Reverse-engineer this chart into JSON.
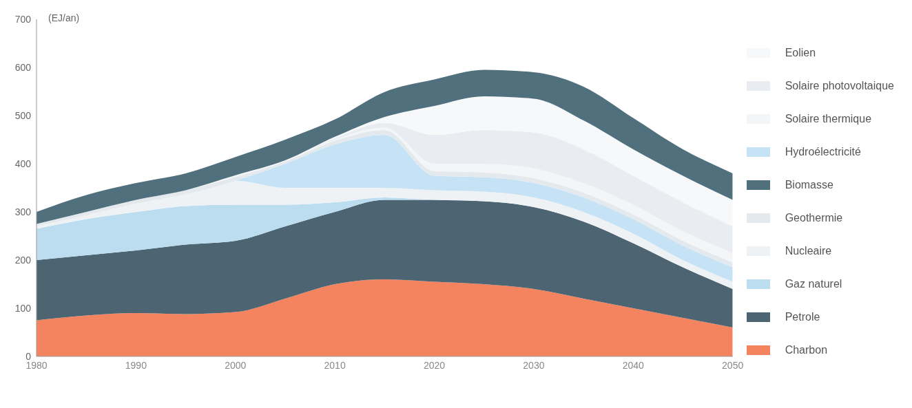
{
  "chart_data": {
    "type": "area",
    "stacked": true,
    "ylabel": "(EJ/an)",
    "x": [
      1980,
      1985,
      1990,
      1995,
      2000,
      2005,
      2010,
      2015,
      2020,
      2025,
      2030,
      2035,
      2040,
      2045,
      2050
    ],
    "xlim": [
      1980,
      2050
    ],
    "xticks": [
      1980,
      1990,
      2000,
      2010,
      2020,
      2030,
      2040,
      2050
    ],
    "ylim": [
      0,
      700
    ],
    "yticks": [
      0,
      100,
      200,
      300,
      400,
      500,
      600,
      700
    ],
    "legend": "right",
    "series": [
      {
        "name": "Charbon",
        "color": "#f4845f",
        "values": [
          75,
          85,
          90,
          88,
          92,
          120,
          150,
          160,
          155,
          150,
          140,
          120,
          100,
          80,
          60
        ]
      },
      {
        "name": "Petrole",
        "color": "#4d6572",
        "values": [
          125,
          125,
          130,
          144,
          148,
          150,
          150,
          165,
          170,
          172,
          170,
          160,
          135,
          105,
          80
        ]
      },
      {
        "name": "Gaz naturel",
        "color": "#bcdcf0",
        "values": [
          65,
          75,
          80,
          80,
          75,
          45,
          20,
          5,
          0,
          0,
          0,
          0,
          0,
          0,
          0
        ]
      },
      {
        "name": "Nucleaire",
        "color": "#eef2f5",
        "values": [
          5,
          8,
          17,
          25,
          50,
          35,
          30,
          20,
          20,
          20,
          20,
          20,
          20,
          15,
          15
        ]
      },
      {
        "name": "Hydroélectricité",
        "color": "#c6e2f5",
        "values": [
          0,
          0,
          0,
          0,
          0,
          50,
          90,
          110,
          30,
          30,
          30,
          30,
          30,
          30,
          30
        ]
      },
      {
        "name": "Geothermie",
        "color": "#e4e9ee",
        "values": [
          5,
          7,
          8,
          8,
          8,
          5,
          8,
          10,
          10,
          10,
          10,
          10,
          10,
          10,
          10
        ]
      },
      {
        "name": "Solaire thermique",
        "color": "#f3f5f7",
        "values": [
          0,
          0,
          0,
          0,
          1,
          1,
          2,
          5,
          15,
          18,
          20,
          20,
          20,
          20,
          20
        ]
      },
      {
        "name": "Solaire photovoltaique",
        "color": "#e9edf1",
        "values": [
          0,
          0,
          0,
          0,
          1,
          0,
          3,
          10,
          60,
          70,
          75,
          70,
          60,
          60,
          55
        ]
      },
      {
        "name": "Eolien",
        "color": "#f6f8fa",
        "values": [
          0,
          0,
          0,
          0,
          1,
          1,
          3,
          12,
          60,
          70,
          70,
          60,
          55,
          55,
          55
        ]
      },
      {
        "name": "Biomasse",
        "color": "#50707e",
        "values": [
          25,
          35,
          35,
          35,
          38,
          43,
          36,
          52,
          55,
          55,
          55,
          70,
          65,
          55,
          55
        ]
      }
    ]
  }
}
